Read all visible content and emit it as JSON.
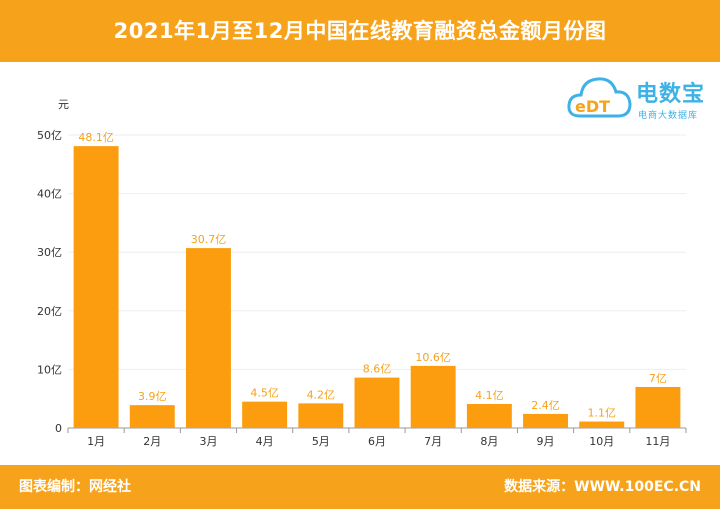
{
  "title": "2021年1月至12月中国在线教育融资总金额月份图",
  "footer": {
    "left": "图表编制：网经社",
    "right": "数据来源：WWW.100EC.CN"
  },
  "logo": {
    "mark": "eDT",
    "name": "电数宝",
    "subtitle": "电商大数据库"
  },
  "colors": {
    "accent": "#f7a21b",
    "bar": "#fb9d0f",
    "logo": "#3db2e6"
  },
  "chart_data": {
    "type": "bar",
    "title": "2021年1月至12月中国在线教育融资总金额月份图",
    "xlabel": "",
    "ylabel": "元",
    "ylim": [
      0,
      50
    ],
    "yticks": [
      0,
      10,
      20,
      30,
      40,
      50
    ],
    "ytick_labels": [
      "0",
      "10亿",
      "20亿",
      "30亿",
      "40亿",
      "50亿"
    ],
    "categories": [
      "1月",
      "2月",
      "3月",
      "4月",
      "5月",
      "6月",
      "7月",
      "8月",
      "9月",
      "10月",
      "11月"
    ],
    "values": [
      48.1,
      3.9,
      30.7,
      4.5,
      4.2,
      8.6,
      10.6,
      4.1,
      2.4,
      1.1,
      7
    ],
    "data_labels": [
      "48.1亿",
      "3.9亿",
      "30.7亿",
      "4.5亿",
      "4.2亿",
      "8.6亿",
      "10.6亿",
      "4.1亿",
      "2.4亿",
      "1.1亿",
      "7亿"
    ],
    "grid": true,
    "legend": "none"
  }
}
